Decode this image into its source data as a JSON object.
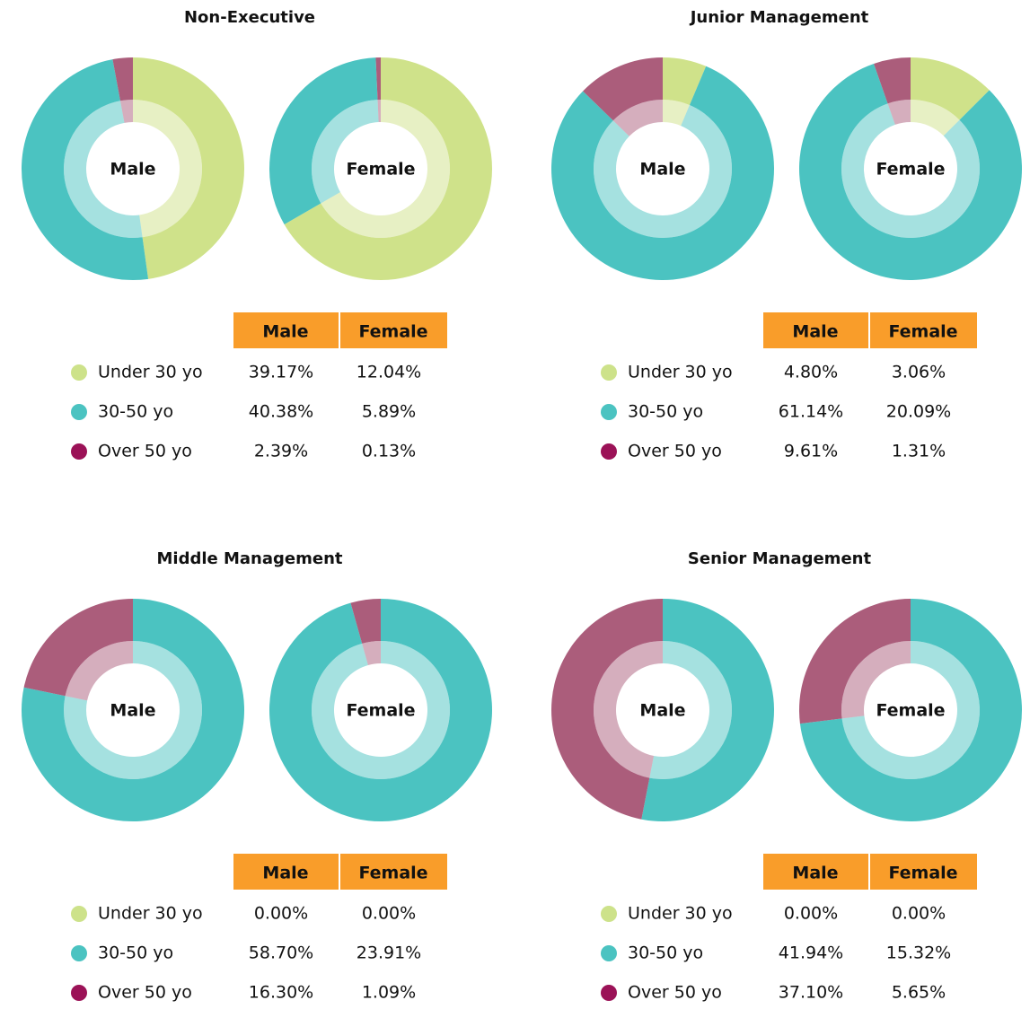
{
  "chart_data": [
    {
      "type": "donut",
      "title": "Non-Executive",
      "categories": [
        "Under 30 yo",
        "30-50 yo",
        "Over 50 yo"
      ],
      "colors": [
        "#cde28a",
        "#4bc3c1",
        "#9b1257"
      ],
      "slice_colors": [
        "#cfe28a",
        "#4bc3c1",
        "#ab5d7b"
      ],
      "series": [
        {
          "name": "Male",
          "values": [
            39.17,
            40.38,
            2.39
          ],
          "value_labels": [
            "39.17%",
            "40.38%",
            "2.39%"
          ]
        },
        {
          "name": "Female",
          "values": [
            12.04,
            5.89,
            0.13
          ],
          "value_labels": [
            "12.04%",
            "5.89%",
            "0.13%"
          ]
        }
      ]
    },
    {
      "type": "donut",
      "title": "Junior Management",
      "categories": [
        "Under 30 yo",
        "30-50 yo",
        "Over 50 yo"
      ],
      "colors": [
        "#cde28a",
        "#4bc3c1",
        "#9b1257"
      ],
      "slice_colors": [
        "#cfe28a",
        "#4bc3c1",
        "#ab5d7b"
      ],
      "series": [
        {
          "name": "Male",
          "values": [
            4.8,
            61.14,
            9.61
          ],
          "value_labels": [
            "4.80%",
            "61.14%",
            "9.61%"
          ]
        },
        {
          "name": "Female",
          "values": [
            3.06,
            20.09,
            1.31
          ],
          "value_labels": [
            "3.06%",
            "20.09%",
            "1.31%"
          ]
        }
      ]
    },
    {
      "type": "donut",
      "title": "Middle Management",
      "categories": [
        "Under 30 yo",
        "30-50 yo",
        "Over 50 yo"
      ],
      "colors": [
        "#cde28a",
        "#4bc3c1",
        "#9b1257"
      ],
      "slice_colors": [
        "#cfe28a",
        "#4bc3c1",
        "#ab5d7b"
      ],
      "series": [
        {
          "name": "Male",
          "values": [
            0,
            58.7,
            16.3
          ],
          "value_labels": [
            "0.00%",
            "58.70%",
            "16.30%"
          ]
        },
        {
          "name": "Female",
          "values": [
            0,
            23.91,
            1.09
          ],
          "value_labels": [
            "0.00%",
            "23.91%",
            "1.09%"
          ]
        }
      ]
    },
    {
      "type": "donut",
      "title": "Senior Management",
      "categories": [
        "Under 30 yo",
        "30-50 yo",
        "Over 50 yo"
      ],
      "colors": [
        "#cde28a",
        "#4bc3c1",
        "#9b1257"
      ],
      "slice_colors": [
        "#cfe28a",
        "#4bc3c1",
        "#ab5d7b"
      ],
      "series": [
        {
          "name": "Male",
          "values": [
            0,
            41.94,
            37.1
          ],
          "value_labels": [
            "0.00%",
            "41.94%",
            "37.10%"
          ]
        },
        {
          "name": "Female",
          "values": [
            0,
            15.32,
            5.65
          ],
          "value_labels": [
            "0.00%",
            "15.32%",
            "5.65%"
          ]
        }
      ]
    }
  ]
}
